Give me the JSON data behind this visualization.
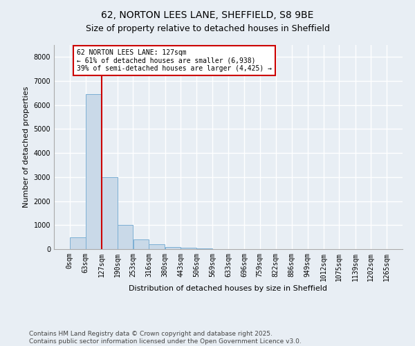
{
  "title_line1": "62, NORTON LEES LANE, SHEFFIELD, S8 9BE",
  "title_line2": "Size of property relative to detached houses in Sheffield",
  "xlabel": "Distribution of detached houses by size in Sheffield",
  "ylabel": "Number of detached properties",
  "bar_edges": [
    0,
    63,
    127,
    190,
    253,
    316,
    380,
    443,
    506,
    569,
    633,
    696,
    759,
    822,
    886,
    949,
    1012,
    1075,
    1139,
    1202,
    1265
  ],
  "bar_heights": [
    500,
    6450,
    3000,
    1000,
    400,
    200,
    100,
    50,
    20,
    10,
    5,
    3,
    2,
    1,
    1,
    1,
    0,
    0,
    0,
    0
  ],
  "bar_color": "#c9d9e8",
  "bar_edge_color": "#7bafd4",
  "property_size": 127,
  "property_line_color": "#cc0000",
  "annotation_text": "62 NORTON LEES LANE: 127sqm\n← 61% of detached houses are smaller (6,938)\n39% of semi-detached houses are larger (4,425) →",
  "annotation_box_color": "#ffffff",
  "annotation_box_edge_color": "#cc0000",
  "ylim": [
    0,
    8500
  ],
  "yticks": [
    0,
    1000,
    2000,
    3000,
    4000,
    5000,
    6000,
    7000,
    8000
  ],
  "background_color": "#e8eef4",
  "grid_color": "#ffffff",
  "footer_line1": "Contains HM Land Registry data © Crown copyright and database right 2025.",
  "footer_line2": "Contains public sector information licensed under the Open Government Licence v3.0.",
  "title_fontsize": 10,
  "axis_label_fontsize": 8,
  "tick_fontsize": 7,
  "footer_fontsize": 6.5
}
